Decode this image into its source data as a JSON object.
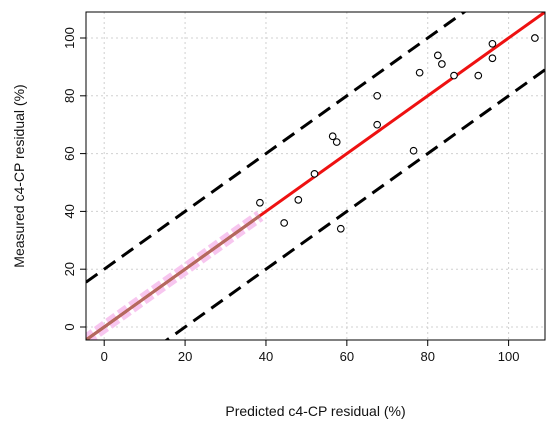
{
  "chart_data": {
    "type": "scatter",
    "title": "",
    "xlabel": "Predicted c4-CP residual (%)",
    "ylabel": "Measured c4-CP residual (%)",
    "xlim": [
      -4.5,
      109
    ],
    "ylim": [
      -4.5,
      109
    ],
    "xticks": [
      0,
      20,
      40,
      60,
      80,
      100
    ],
    "yticks": [
      0,
      20,
      40,
      60,
      80,
      100
    ],
    "grid": true,
    "points": [
      {
        "x": 38.5,
        "y": 43
      },
      {
        "x": 44.5,
        "y": 36
      },
      {
        "x": 48,
        "y": 44
      },
      {
        "x": 52,
        "y": 53
      },
      {
        "x": 56.5,
        "y": 66
      },
      {
        "x": 57.5,
        "y": 64
      },
      {
        "x": 58.5,
        "y": 34
      },
      {
        "x": 67.5,
        "y": 80
      },
      {
        "x": 67.5,
        "y": 70
      },
      {
        "x": 76.5,
        "y": 61
      },
      {
        "x": 78,
        "y": 88
      },
      {
        "x": 82.5,
        "y": 94
      },
      {
        "x": 83.5,
        "y": 91
      },
      {
        "x": 86.5,
        "y": 87
      },
      {
        "x": 92.5,
        "y": 87
      },
      {
        "x": 96,
        "y": 98
      },
      {
        "x": 96,
        "y": 93
      },
      {
        "x": 106.5,
        "y": 100
      }
    ],
    "lines": [
      {
        "kind": "identity",
        "slope": 1,
        "intercept": 0,
        "color": "#ee1111",
        "style": "solid",
        "highlight_to_x": 38.5,
        "highlight_color": "#b26a5e"
      },
      {
        "kind": "upper-bound",
        "slope": 1,
        "intercept": 20,
        "color": "#000000",
        "style": "dashed"
      },
      {
        "kind": "lower-bound",
        "slope": 1,
        "intercept": -20,
        "color": "#000000",
        "style": "dashed"
      }
    ],
    "highlight_band_color": "#f7c6ef"
  }
}
